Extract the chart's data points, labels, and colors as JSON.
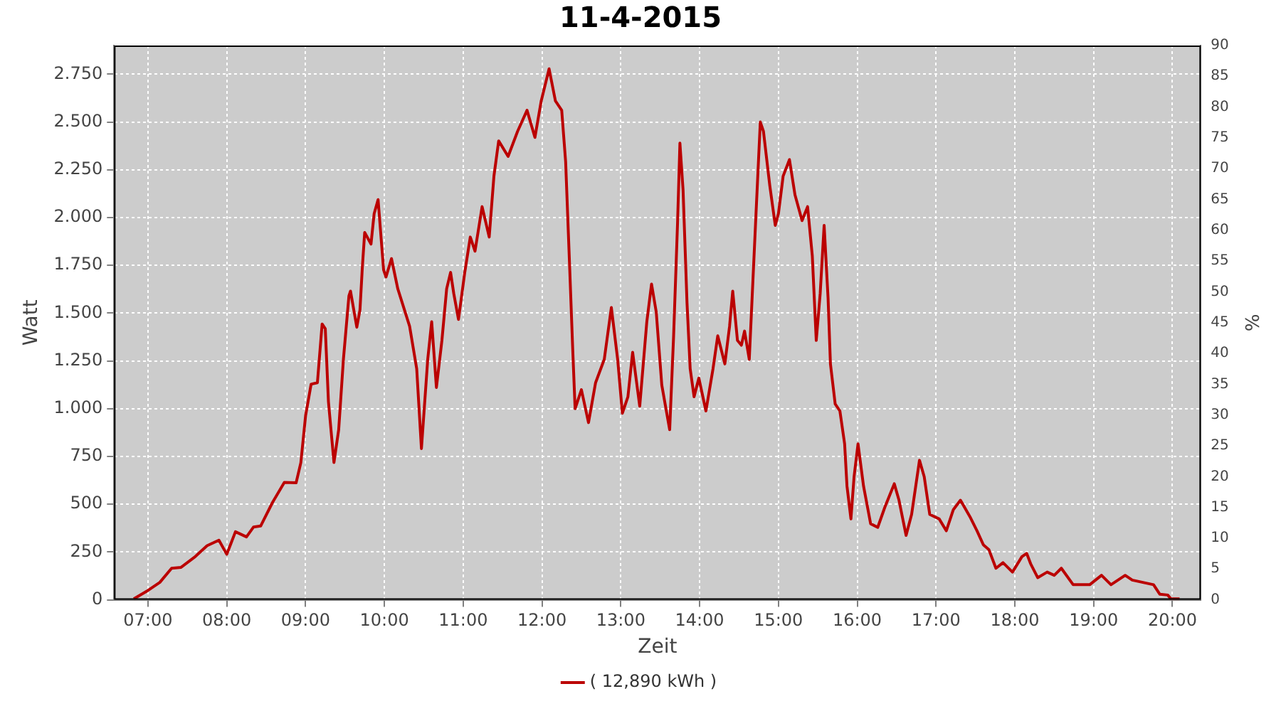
{
  "chart_data": {
    "type": "line",
    "title": "11-4-2015",
    "xlabel": "Zeit",
    "ylabel": "Watt",
    "y2label": "%",
    "x": [
      6.82,
      7.0,
      7.15,
      7.3,
      7.42,
      7.6,
      7.75,
      7.9,
      8.0,
      8.11,
      8.25,
      8.34,
      8.43,
      8.58,
      8.73,
      8.88,
      8.94,
      9.0,
      9.07,
      9.15,
      9.21,
      9.25,
      9.29,
      9.36,
      9.42,
      9.48,
      9.55,
      9.57,
      9.65,
      9.69,
      9.72,
      9.75,
      9.83,
      9.87,
      9.92,
      9.99,
      10.02,
      10.09,
      10.17,
      10.32,
      10.41,
      10.47,
      10.55,
      10.6,
      10.66,
      10.73,
      10.79,
      10.84,
      10.88,
      10.94,
      11.02,
      11.09,
      11.15,
      11.24,
      11.33,
      11.39,
      11.45,
      11.57,
      11.69,
      11.81,
      11.91,
      11.99,
      12.09,
      12.17,
      12.25,
      12.3,
      12.35,
      12.39,
      12.42,
      12.5,
      12.59,
      12.68,
      12.79,
      12.88,
      12.96,
      13.02,
      13.09,
      13.15,
      13.24,
      13.33,
      13.39,
      13.45,
      13.52,
      13.62,
      13.67,
      13.72,
      13.75,
      13.79,
      13.84,
      13.88,
      13.93,
      13.99,
      14.08,
      14.17,
      14.23,
      14.32,
      14.38,
      14.42,
      14.48,
      14.53,
      14.57,
      14.63,
      14.71,
      14.77,
      14.81,
      14.89,
      14.96,
      15.0,
      15.06,
      15.14,
      15.21,
      15.3,
      15.37,
      15.43,
      15.48,
      15.53,
      15.58,
      15.63,
      15.66,
      15.72,
      15.78,
      15.84,
      15.87,
      15.92,
      15.96,
      16.01,
      16.08,
      16.17,
      16.26,
      16.35,
      16.47,
      16.53,
      16.62,
      16.69,
      16.79,
      16.85,
      16.92,
      17.04,
      17.13,
      17.22,
      17.31,
      17.43,
      17.52,
      17.6,
      17.67,
      17.76,
      17.85,
      17.97,
      18.09,
      18.15,
      18.2,
      18.29,
      18.41,
      18.5,
      18.59,
      18.74,
      18.95,
      19.1,
      19.22,
      19.4,
      19.49,
      19.76,
      19.84,
      19.94,
      19.98,
      20.09
    ],
    "series": [
      {
        "name": "( 12,890 kWh )",
        "color": "#bb0000",
        "values": [
          5,
          49,
          91,
          165,
          170,
          226,
          283,
          312,
          238,
          356,
          329,
          381,
          386,
          509,
          614,
          612,
          718,
          963,
          1128,
          1136,
          1443,
          1418,
          1037,
          718,
          890,
          1258,
          1590,
          1615,
          1426,
          1517,
          1738,
          1922,
          1861,
          2020,
          2094,
          1726,
          1689,
          1785,
          1627,
          1431,
          1209,
          791,
          1258,
          1455,
          1111,
          1357,
          1627,
          1713,
          1603,
          1467,
          1713,
          1898,
          1824,
          2057,
          1898,
          2217,
          2401,
          2320,
          2451,
          2561,
          2419,
          2610,
          2778,
          2610,
          2561,
          2291,
          1750,
          1308,
          1000,
          1099,
          927,
          1136,
          1258,
          1529,
          1258,
          976,
          1062,
          1295,
          1013,
          1455,
          1652,
          1504,
          1123,
          890,
          1381,
          1971,
          2389,
          2143,
          1554,
          1209,
          1062,
          1160,
          988,
          1209,
          1381,
          1234,
          1431,
          1615,
          1357,
          1332,
          1406,
          1258,
          1971,
          2500,
          2451,
          2168,
          1959,
          2020,
          2217,
          2303,
          2119,
          1984,
          2057,
          1799,
          1357,
          1603,
          1959,
          1578,
          1234,
          1025,
          988,
          816,
          595,
          423,
          644,
          816,
          595,
          398,
          379,
          484,
          607,
          521,
          337,
          447,
          730,
          644,
          447,
          423,
          361,
          472,
          521,
          435,
          361,
          288,
          263,
          165,
          194,
          145,
          226,
          243,
          189,
          116,
          145,
          128,
          165,
          79,
          79,
          128,
          79,
          128,
          103,
          79,
          29,
          25,
          5,
          5
        ]
      }
    ],
    "xlim": [
      6.57,
      20.36
    ],
    "xticks": [
      {
        "value": 7,
        "label": "07:00"
      },
      {
        "value": 8,
        "label": "08:00"
      },
      {
        "value": 9,
        "label": "09:00"
      },
      {
        "value": 10,
        "label": "10:00"
      },
      {
        "value": 11,
        "label": "11:00"
      },
      {
        "value": 12,
        "label": "12:00"
      },
      {
        "value": 13,
        "label": "13:00"
      },
      {
        "value": 14,
        "label": "14:00"
      },
      {
        "value": 15,
        "label": "15:00"
      },
      {
        "value": 16,
        "label": "16:00"
      },
      {
        "value": 17,
        "label": "17:00"
      },
      {
        "value": 18,
        "label": "18:00"
      },
      {
        "value": 19,
        "label": "19:00"
      },
      {
        "value": 20,
        "label": "20:00"
      }
    ],
    "ylim": [
      0,
      2900
    ],
    "yticks": [
      0,
      250,
      500,
      750,
      {
        "value": 1000,
        "label": "1.000"
      },
      {
        "value": 1250,
        "label": "1.250"
      },
      {
        "value": 1500,
        "label": "1.500"
      },
      {
        "value": 1750,
        "label": "1.750"
      },
      {
        "value": 2000,
        "label": "2.000"
      },
      {
        "value": 2250,
        "label": "2.250"
      },
      {
        "value": 2500,
        "label": "2.500"
      },
      {
        "value": 2750,
        "label": "2.750"
      }
    ],
    "y2lim": [
      0,
      90
    ],
    "y2ticks": [
      0,
      5,
      10,
      15,
      20,
      25,
      30,
      35,
      40,
      45,
      50,
      55,
      60,
      65,
      70,
      75,
      80,
      85,
      90
    ],
    "grid": true,
    "legend": "bottom",
    "marker": "none",
    "line_style": "solid"
  }
}
